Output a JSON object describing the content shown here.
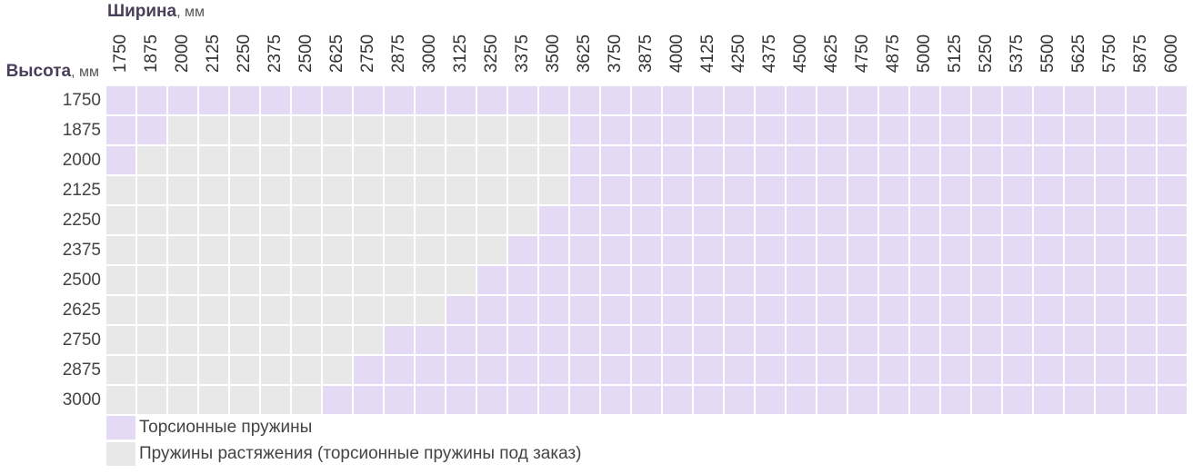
{
  "header": {
    "width_title": "Ширина",
    "width_unit": ", мм",
    "height_title": "Высота",
    "height_unit": ", мм"
  },
  "colors": {
    "torsion": "#e4daf6",
    "extension": "#e8e8e8",
    "grid_line": "#ffffff"
  },
  "legend": [
    {
      "label": "Торсионные пружины",
      "key": "torsion"
    },
    {
      "label": "Пружины растяжения (торсионные пружины под заказ)",
      "key": "extension"
    }
  ],
  "chart_data": {
    "type": "heatmap",
    "x": [
      "1750",
      "1875",
      "2000",
      "2125",
      "2250",
      "2375",
      "2500",
      "2625",
      "2750",
      "2875",
      "3000",
      "3125",
      "3250",
      "3375",
      "3500",
      "3625",
      "3750",
      "3875",
      "4000",
      "4125",
      "4250",
      "4375",
      "4500",
      "4625",
      "4750",
      "4875",
      "5000",
      "5125",
      "5250",
      "5375",
      "5500",
      "5625",
      "5750",
      "5875",
      "6000"
    ],
    "y": [
      "1750",
      "1875",
      "2000",
      "2125",
      "2250",
      "2375",
      "2500",
      "2625",
      "2750",
      "2875",
      "3000"
    ],
    "values": [
      [
        1,
        1,
        1,
        1,
        1,
        1,
        1,
        1,
        1,
        1,
        1,
        1,
        1,
        1,
        1,
        1,
        1,
        1,
        1,
        1,
        1,
        1,
        1,
        1,
        1,
        1,
        1,
        1,
        1,
        1,
        1,
        1,
        1,
        1,
        1
      ],
      [
        1,
        1,
        0,
        0,
        0,
        0,
        0,
        0,
        0,
        0,
        0,
        0,
        0,
        0,
        0,
        1,
        1,
        1,
        1,
        1,
        1,
        1,
        1,
        1,
        1,
        1,
        1,
        1,
        1,
        1,
        1,
        1,
        1,
        1,
        1
      ],
      [
        1,
        0,
        0,
        0,
        0,
        0,
        0,
        0,
        0,
        0,
        0,
        0,
        0,
        0,
        0,
        1,
        1,
        1,
        1,
        1,
        1,
        1,
        1,
        1,
        1,
        1,
        1,
        1,
        1,
        1,
        1,
        1,
        1,
        1,
        1
      ],
      [
        0,
        0,
        0,
        0,
        0,
        0,
        0,
        0,
        0,
        0,
        0,
        0,
        0,
        0,
        0,
        1,
        1,
        1,
        1,
        1,
        1,
        1,
        1,
        1,
        1,
        1,
        1,
        1,
        1,
        1,
        1,
        1,
        1,
        1,
        1
      ],
      [
        0,
        0,
        0,
        0,
        0,
        0,
        0,
        0,
        0,
        0,
        0,
        0,
        0,
        0,
        1,
        1,
        1,
        1,
        1,
        1,
        1,
        1,
        1,
        1,
        1,
        1,
        1,
        1,
        1,
        1,
        1,
        1,
        1,
        1,
        1
      ],
      [
        0,
        0,
        0,
        0,
        0,
        0,
        0,
        0,
        0,
        0,
        0,
        0,
        0,
        1,
        1,
        1,
        1,
        1,
        1,
        1,
        1,
        1,
        1,
        1,
        1,
        1,
        1,
        1,
        1,
        1,
        1,
        1,
        1,
        1,
        1
      ],
      [
        0,
        0,
        0,
        0,
        0,
        0,
        0,
        0,
        0,
        0,
        0,
        0,
        1,
        1,
        1,
        1,
        1,
        1,
        1,
        1,
        1,
        1,
        1,
        1,
        1,
        1,
        1,
        1,
        1,
        1,
        1,
        1,
        1,
        1,
        1
      ],
      [
        0,
        0,
        0,
        0,
        0,
        0,
        0,
        0,
        0,
        0,
        0,
        1,
        1,
        1,
        1,
        1,
        1,
        1,
        1,
        1,
        1,
        1,
        1,
        1,
        1,
        1,
        1,
        1,
        1,
        1,
        1,
        1,
        1,
        1,
        1
      ],
      [
        0,
        0,
        0,
        0,
        0,
        0,
        0,
        0,
        0,
        1,
        1,
        1,
        1,
        1,
        1,
        1,
        1,
        1,
        1,
        1,
        1,
        1,
        1,
        1,
        1,
        1,
        1,
        1,
        1,
        1,
        1,
        1,
        1,
        1,
        1
      ],
      [
        0,
        0,
        0,
        0,
        0,
        0,
        0,
        0,
        1,
        1,
        1,
        1,
        1,
        1,
        1,
        1,
        1,
        1,
        1,
        1,
        1,
        1,
        1,
        1,
        1,
        1,
        1,
        1,
        1,
        1,
        1,
        1,
        1,
        1,
        1
      ],
      [
        0,
        0,
        0,
        0,
        0,
        0,
        0,
        1,
        1,
        1,
        1,
        1,
        1,
        1,
        1,
        1,
        1,
        1,
        1,
        1,
        1,
        1,
        1,
        1,
        1,
        1,
        1,
        1,
        1,
        1,
        1,
        1,
        1,
        1,
        1
      ]
    ],
    "value_legend": {
      "1": "torsion",
      "0": "extension"
    }
  }
}
